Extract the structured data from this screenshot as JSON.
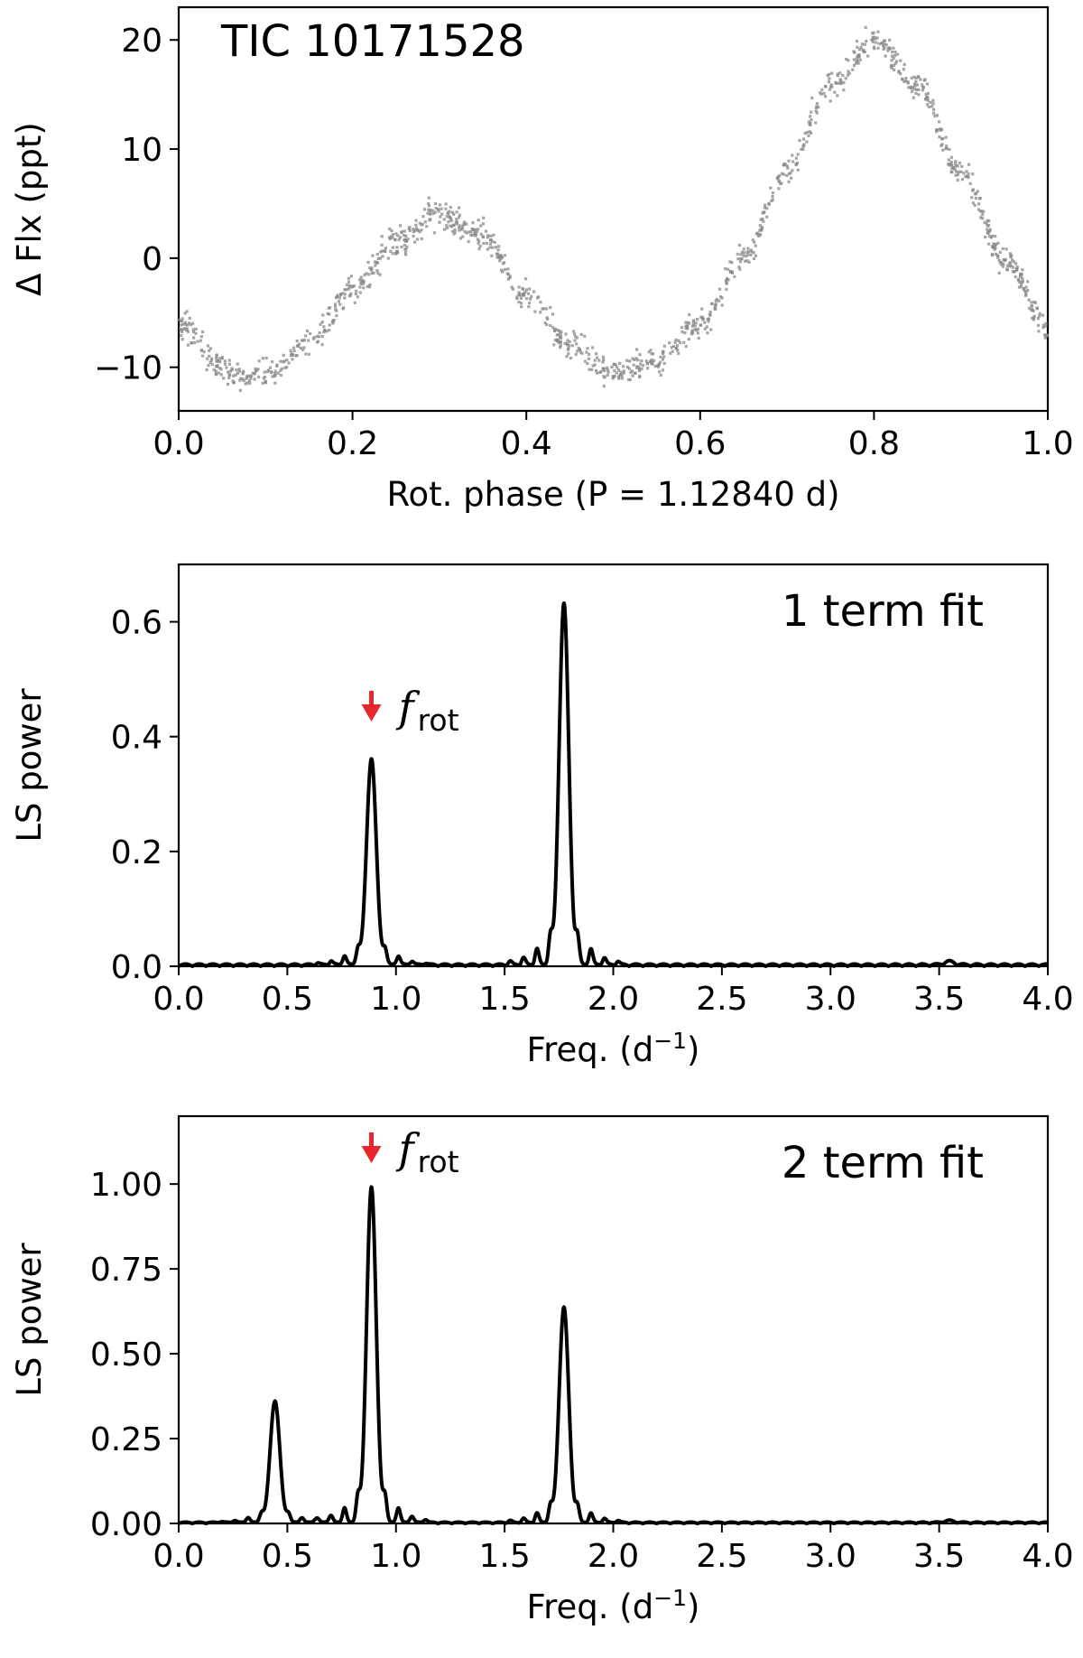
{
  "figure_label": "TIC 10171528",
  "annotation_color": "#e8262b",
  "chart_data": [
    {
      "type": "scatter",
      "annotation": "TIC 10171528",
      "xlabel": "Rot. phase (P = 1.12840 d)",
      "ylabel": "Δ Flx (ppt)",
      "xlim": [
        0.0,
        1.0
      ],
      "ylim": [
        -14,
        23
      ],
      "xticks": [
        "0.0",
        "0.2",
        "0.4",
        "0.6",
        "0.8",
        "1.0"
      ],
      "yticks": [
        "−10",
        "0",
        "10",
        "20"
      ],
      "point_color": "#888888",
      "grid": false,
      "series": [
        {
          "x": [
            0.0,
            0.05,
            0.08,
            0.1,
            0.15,
            0.2,
            0.25,
            0.3,
            0.35,
            0.4,
            0.45,
            0.5,
            0.55,
            0.6,
            0.65,
            0.7,
            0.75,
            0.8,
            0.85,
            0.9,
            0.95,
            1.0
          ],
          "y": [
            -6,
            -10,
            -11,
            -10.5,
            -8,
            -3,
            1.5,
            4,
            2,
            -3.5,
            -8,
            -10.5,
            -9.5,
            -6,
            0,
            8,
            16,
            20,
            16,
            8,
            0,
            -6.5
          ]
        }
      ]
    },
    {
      "type": "line",
      "annotation": "1 term fit",
      "xlabel": "Freq. (d",
      "xlabel_sup": "−1",
      "xlabel_end": ")",
      "ylabel": "LS power",
      "xlim": [
        0.0,
        4.0
      ],
      "ylim": [
        0.0,
        0.7
      ],
      "xticks": [
        "0.0",
        "0.5",
        "1.0",
        "1.5",
        "2.0",
        "2.5",
        "3.0",
        "3.5",
        "4.0"
      ],
      "yticks": [
        "0.0",
        "0.2",
        "0.4",
        "0.6"
      ],
      "grid": false,
      "peaks": [
        {
          "f": 0.887,
          "p": 0.36
        },
        {
          "f": 1.773,
          "p": 0.63
        },
        {
          "f": 3.546,
          "p": 0.006
        }
      ],
      "marker": {
        "label": "f",
        "label_sub": "rot",
        "x": 0.887
      }
    },
    {
      "type": "line",
      "annotation": "2 term fit",
      "xlabel": "Freq. (d",
      "xlabel_sup": "−1",
      "xlabel_end": ")",
      "ylabel": "LS power",
      "xlim": [
        0.0,
        4.0
      ],
      "ylim": [
        0.0,
        1.2
      ],
      "xticks": [
        "0.0",
        "0.5",
        "1.0",
        "1.5",
        "2.0",
        "2.5",
        "3.0",
        "3.5",
        "4.0"
      ],
      "yticks": [
        "0.00",
        "0.25",
        "0.50",
        "0.75",
        "1.00"
      ],
      "grid": false,
      "peaks": [
        {
          "f": 0.443,
          "p": 0.36
        },
        {
          "f": 0.887,
          "p": 0.99
        },
        {
          "f": 1.773,
          "p": 0.635
        },
        {
          "f": 3.546,
          "p": 0.006
        }
      ],
      "marker": {
        "label": "f",
        "label_sub": "rot",
        "x": 0.887
      }
    }
  ]
}
